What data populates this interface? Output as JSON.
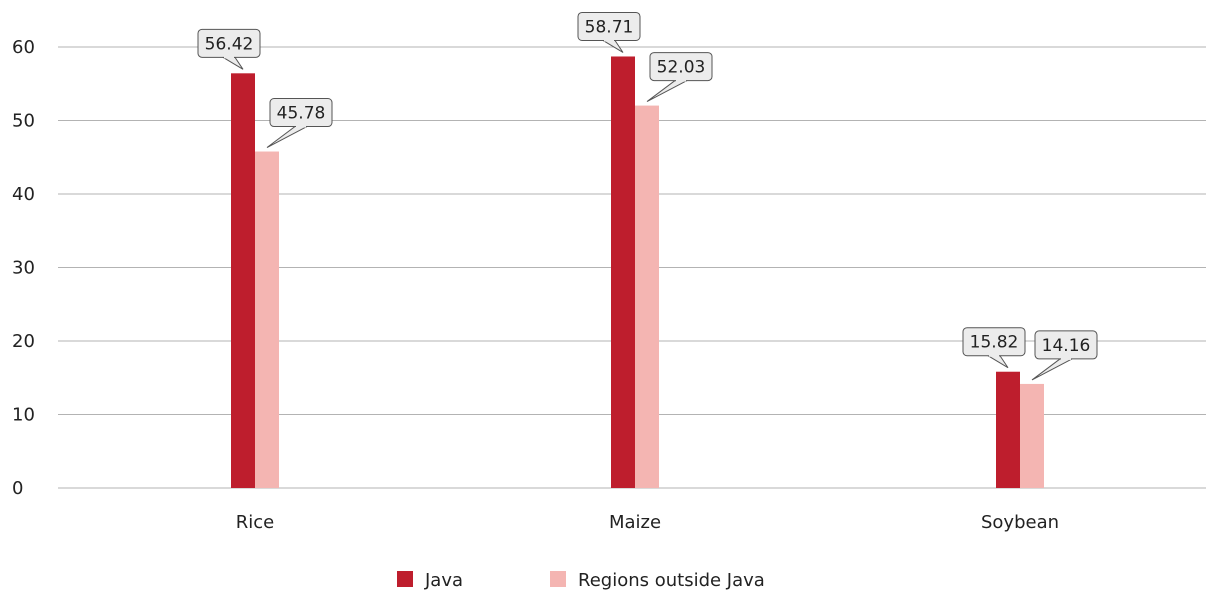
{
  "chart_data": {
    "type": "bar",
    "categories": [
      "Rice",
      "Maize",
      "Soybean"
    ],
    "series": [
      {
        "name": "Java",
        "values": [
          56.42,
          58.71,
          15.82
        ],
        "color": "#be1e2d"
      },
      {
        "name": "Regions outside Java",
        "values": [
          45.78,
          52.03,
          14.16
        ],
        "color": "#f4b5b2"
      }
    ],
    "data_labels": [
      [
        "56.42",
        "58.71",
        "15.82"
      ],
      [
        "45.78",
        "52.03",
        "14.16"
      ]
    ],
    "yticks": [
      "0",
      "10",
      "20",
      "30",
      "40",
      "50",
      "60"
    ],
    "ylim": [
      0,
      60
    ],
    "grid": true,
    "legend_position": "bottom-center",
    "title": "",
    "xlabel": "",
    "ylabel": ""
  }
}
